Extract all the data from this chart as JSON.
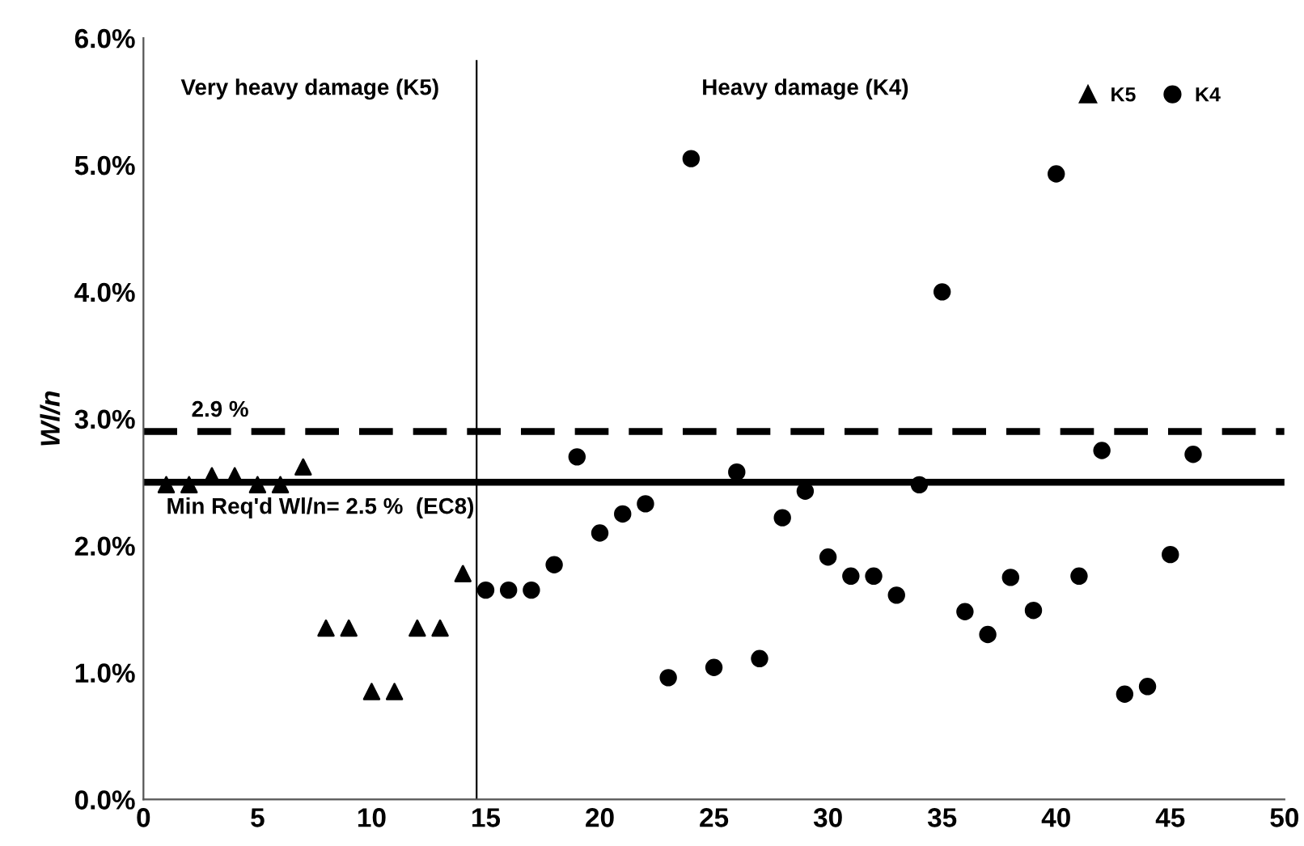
{
  "chart_data": {
    "type": "scatter",
    "ylabel": "Wl/n",
    "xlim": [
      0,
      50
    ],
    "xticks": [
      0,
      5,
      10,
      15,
      20,
      25,
      30,
      35,
      40,
      45,
      50
    ],
    "ylim": [
      0,
      6
    ],
    "yticks": [
      {
        "value": 0,
        "label": "0.0%"
      },
      {
        "value": 1,
        "label": "1.0%"
      },
      {
        "value": 2,
        "label": "2.0%"
      },
      {
        "value": 3,
        "label": "3.0%"
      },
      {
        "value": 4,
        "label": "4.0%"
      },
      {
        "value": 5,
        "label": "5.0%"
      },
      {
        "value": 6,
        "label": "6.0%"
      }
    ],
    "grid": false,
    "legend": "top right",
    "series": [
      {
        "name": "K5",
        "color": "#000000",
        "marker": "triangle",
        "x": [
          1,
          2,
          3,
          4,
          5,
          6,
          7,
          8,
          9,
          10,
          11,
          12,
          13,
          14
        ],
        "values": [
          2.48,
          2.48,
          2.55,
          2.55,
          2.48,
          2.48,
          2.62,
          1.35,
          1.35,
          0.85,
          0.85,
          1.35,
          1.35,
          1.78
        ]
      },
      {
        "name": "K4",
        "color": "#000000",
        "marker": "circle",
        "x": [
          15,
          16,
          17,
          18,
          19,
          20,
          21,
          22,
          23,
          24,
          25,
          26,
          27,
          28,
          29,
          30,
          31,
          32,
          33,
          34,
          35,
          36,
          37,
          38,
          39,
          40,
          41,
          42,
          43,
          44,
          45,
          46
        ],
        "values": [
          1.65,
          1.65,
          1.65,
          1.85,
          2.7,
          2.1,
          2.25,
          2.33,
          0.96,
          5.05,
          1.04,
          2.58,
          1.11,
          2.22,
          2.43,
          1.91,
          1.76,
          1.76,
          1.61,
          2.48,
          4.0,
          1.48,
          1.3,
          1.75,
          1.49,
          4.93,
          1.76,
          2.75,
          0.83,
          0.89,
          1.93,
          2.72
        ]
      }
    ],
    "ref_lines": [
      {
        "axis": "y",
        "value": 2.9,
        "label": "2.9 %",
        "line_style": "dashed",
        "color": "#000000"
      },
      {
        "axis": "y",
        "value": 2.5,
        "label": "Min Req'd Wl/n= 2.5 %  (EC8)",
        "line_style": "solid",
        "color": "#000000"
      },
      {
        "axis": "x",
        "value": 14.6,
        "label": null,
        "line_style": "solid",
        "color": "#000000"
      }
    ],
    "annotations": [
      "Very heavy damage (K5)",
      "Heavy damage (K4)"
    ]
  }
}
